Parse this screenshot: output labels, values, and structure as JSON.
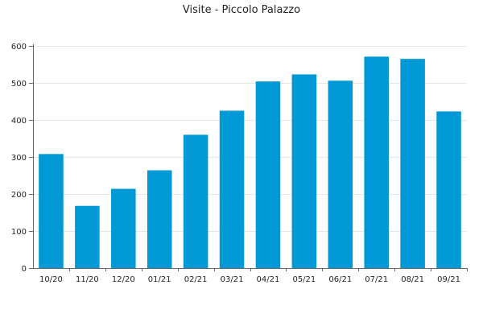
{
  "chart_data": {
    "type": "bar",
    "title": "Visite - Piccolo Palazzo",
    "xlabel": "",
    "ylabel": "",
    "categories": [
      "10/20",
      "11/20",
      "12/20",
      "01/21",
      "02/21",
      "03/21",
      "04/21",
      "05/21",
      "06/21",
      "07/21",
      "08/21",
      "09/21"
    ],
    "values": [
      308,
      168,
      214,
      264,
      360,
      425,
      504,
      523,
      506,
      571,
      565,
      423
    ],
    "ylim": [
      0,
      600
    ],
    "yticks": [
      0,
      100,
      200,
      300,
      400,
      500,
      600
    ],
    "grid": true,
    "legend": "none",
    "colors": {
      "bar": "#0099d6"
    }
  }
}
